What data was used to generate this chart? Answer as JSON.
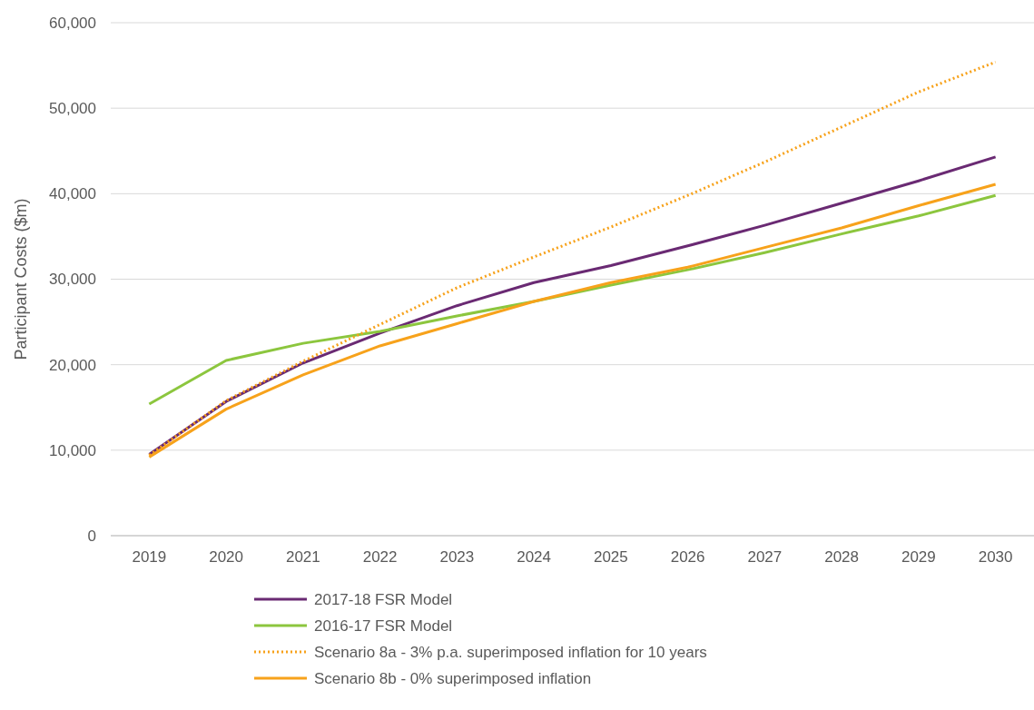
{
  "chart_data": {
    "type": "line",
    "ylabel": "Participant Costs ($m)",
    "categories": [
      "2019",
      "2020",
      "2021",
      "2022",
      "2023",
      "2024",
      "2025",
      "2026",
      "2027",
      "2028",
      "2029",
      "2030"
    ],
    "ylim": [
      0,
      60000
    ],
    "yticks": [
      {
        "value": 0,
        "label": "0"
      },
      {
        "value": 10000,
        "label": "10,000"
      },
      {
        "value": 20000,
        "label": "20,000"
      },
      {
        "value": 30000,
        "label": "30,000"
      },
      {
        "value": 40000,
        "label": "40,000"
      },
      {
        "value": 50000,
        "label": "50,000"
      },
      {
        "value": 60000,
        "label": "60,000"
      }
    ],
    "grid": "y",
    "legend": "bottom",
    "marker": "none",
    "series": [
      {
        "name": "2017-18 FSR Model",
        "color": "#6a2a73",
        "line_style": "solid",
        "values": [
          9500,
          15700,
          20200,
          23700,
          26900,
          29600,
          31600,
          33900,
          36300,
          38900,
          41500,
          44300
        ]
      },
      {
        "name": "2016-17 FSR Model",
        "color": "#8cc63e",
        "line_style": "solid",
        "values": [
          15400,
          20500,
          22500,
          23900,
          25700,
          27400,
          29300,
          31100,
          33100,
          35300,
          37400,
          39800
        ]
      },
      {
        "name": "Scenario 8a - 3% p.a. superimposed inflation for 10 years",
        "color": "#f7a21b",
        "line_style": "dotted",
        "values": [
          9400,
          15800,
          20400,
          24700,
          29000,
          32600,
          36100,
          39800,
          43700,
          47800,
          51900,
          55400
        ]
      },
      {
        "name": "Scenario 8b - 0% superimposed inflation",
        "color": "#f7a21b",
        "line_style": "solid",
        "values": [
          9200,
          14800,
          18800,
          22200,
          24800,
          27400,
          29600,
          31400,
          33700,
          36000,
          38600,
          41100
        ]
      }
    ]
  }
}
